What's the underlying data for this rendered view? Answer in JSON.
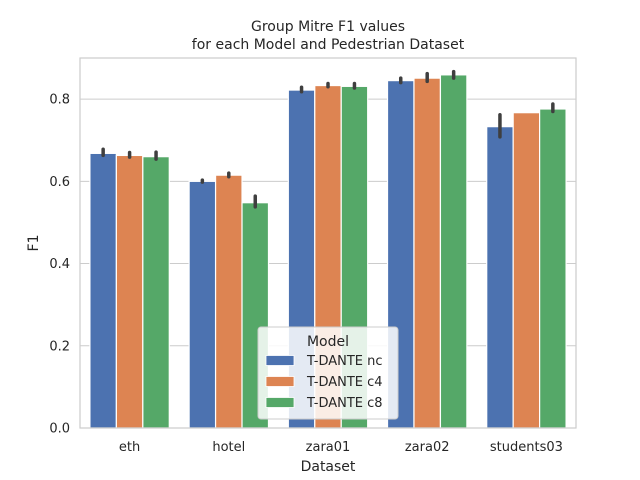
{
  "chart_data": {
    "type": "bar",
    "title_line1": "Group Mitre F1 values",
    "title_line2": "for each Model and Pedestrian Dataset",
    "xlabel": "Dataset",
    "ylabel": "F1",
    "ylim": [
      0,
      0.9
    ],
    "yticks": [
      "0.0",
      "0.2",
      "0.4",
      "0.6",
      "0.8"
    ],
    "ytick_values": [
      0.0,
      0.2,
      0.4,
      0.6,
      0.8
    ],
    "grid": "horizontal",
    "categories": [
      "eth",
      "hotel",
      "zara01",
      "zara02",
      "students03"
    ],
    "series": [
      {
        "name": "T-DANTE nc",
        "color": "#4c72b0",
        "values": [
          0.668,
          0.6,
          0.822,
          0.845,
          0.733
        ],
        "err_low": [
          0.663,
          0.598,
          0.818,
          0.84,
          0.708
        ],
        "err_high": [
          0.678,
          0.603,
          0.829,
          0.851,
          0.762
        ]
      },
      {
        "name": "T-DANTE c4",
        "color": "#dd8452",
        "values": [
          0.663,
          0.615,
          0.833,
          0.851,
          0.767
        ],
        "err_low": [
          0.659,
          0.611,
          0.83,
          0.843,
          0.767
        ],
        "err_high": [
          0.67,
          0.62,
          0.838,
          0.862,
          0.767
        ]
      },
      {
        "name": "T-DANTE c8",
        "color": "#55a868",
        "values": [
          0.66,
          0.548,
          0.831,
          0.859,
          0.776
        ],
        "err_low": [
          0.654,
          0.538,
          0.827,
          0.851,
          0.77
        ],
        "err_high": [
          0.671,
          0.564,
          0.838,
          0.867,
          0.788
        ]
      }
    ],
    "legend": {
      "title": "Model",
      "placement": "lower-center"
    }
  }
}
